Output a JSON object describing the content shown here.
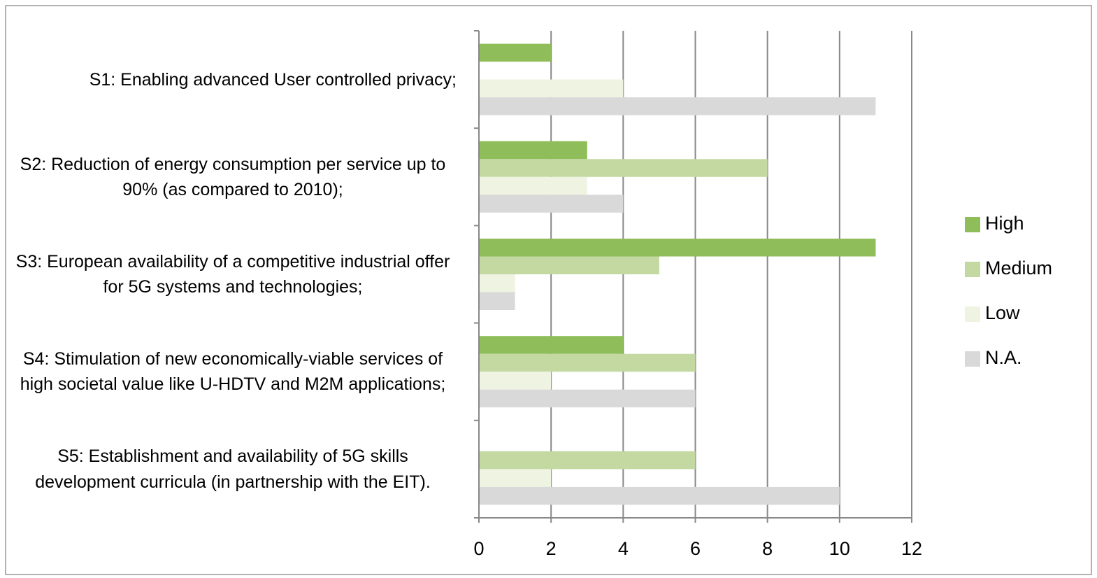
{
  "chart_data": {
    "type": "hbar",
    "categories": [
      "S1: Enabling advanced User controlled privacy;",
      "S2: Reduction of energy consumption per service up to 90% (as compared to 2010);",
      "S3: European availability of a competitive industrial offer for 5G systems and technologies;",
      "S4: Stimulation of new economically-viable services of high societal value like U-HDTV and M2M applications;",
      "S5: Establishment and availability of 5G skills development curricula (in partnership with the EIT)."
    ],
    "series": [
      {
        "name": "High",
        "color": "#8fbd59",
        "values": [
          2,
          3,
          11,
          4,
          0
        ]
      },
      {
        "name": "Medium",
        "color": "#c4d9a2",
        "values": [
          0,
          8,
          5,
          6,
          6
        ]
      },
      {
        "name": "Low",
        "color": "#eef3e2",
        "values": [
          4,
          3,
          1,
          2,
          2
        ]
      },
      {
        "name": "N.A.",
        "color": "#d9d9d9",
        "values": [
          11,
          4,
          1,
          6,
          10
        ]
      }
    ],
    "xlim": [
      0,
      12
    ],
    "xticks": [
      0,
      2,
      4,
      6,
      8,
      10,
      12
    ],
    "grid": true,
    "legend": "right"
  }
}
